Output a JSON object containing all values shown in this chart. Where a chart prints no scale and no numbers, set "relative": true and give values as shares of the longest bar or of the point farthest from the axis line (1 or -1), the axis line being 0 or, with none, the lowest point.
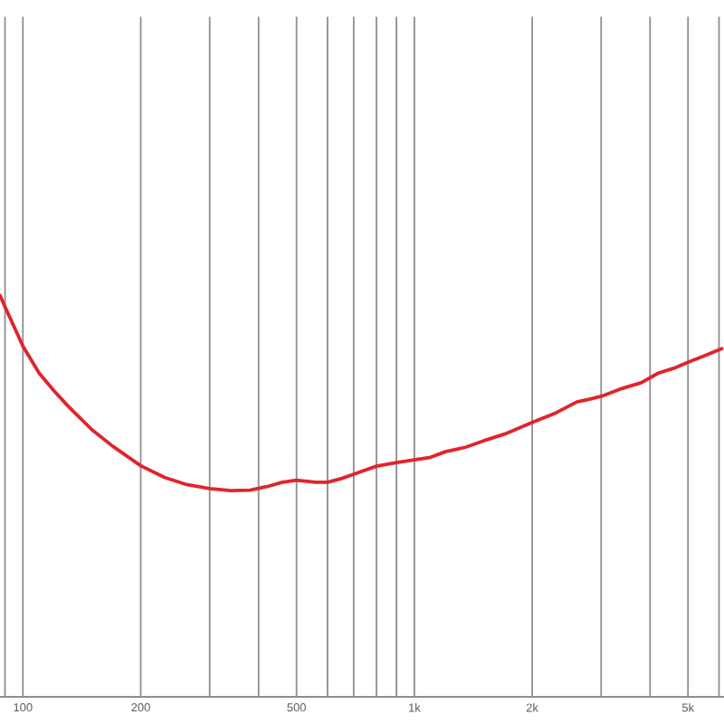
{
  "chart_data": {
    "type": "line",
    "relative": true,
    "log": "x",
    "grid": "x",
    "tick_labels": "x",
    "x": [
      87.5,
      90,
      95,
      100,
      110,
      120,
      130,
      150,
      170,
      200,
      230,
      260,
      300,
      340,
      380,
      420,
      460,
      500,
      560,
      600,
      650,
      700,
      800,
      900,
      1000,
      1100,
      1200,
      1350,
      1500,
      1700,
      2000,
      2300,
      2600,
      2800,
      3000,
      3400,
      3800,
      4200,
      4600,
      5000,
      5500,
      6100
    ],
    "series": [
      {
        "color": "#e0242c",
        "values": [
          1.0,
          0.972,
          0.922,
          0.874,
          0.807,
          0.763,
          0.726,
          0.666,
          0.624,
          0.576,
          0.547,
          0.53,
          0.519,
          0.514,
          0.515,
          0.524,
          0.535,
          0.54,
          0.535,
          0.535,
          0.544,
          0.555,
          0.575,
          0.584,
          0.591,
          0.597,
          0.611,
          0.622,
          0.638,
          0.655,
          0.684,
          0.708,
          0.735,
          0.742,
          0.749,
          0.769,
          0.783,
          0.807,
          0.819,
          0.834,
          0.85,
          0.868
        ]
      }
    ],
    "xlim": [
      87.4,
      6180
    ],
    "xticks": [
      {
        "value": 90,
        "label": null
      },
      100,
      200,
      {
        "value": 300,
        "label": null
      },
      {
        "value": 400,
        "label": null
      },
      500,
      {
        "value": 600,
        "label": null
      },
      {
        "value": 700,
        "label": null
      },
      {
        "value": 800,
        "label": null
      },
      {
        "value": 900,
        "label": null
      },
      {
        "value": 1000,
        "label": "1k"
      },
      {
        "value": 2000,
        "label": "2k"
      },
      {
        "value": 3000,
        "label": null
      },
      {
        "value": 4000,
        "label": null
      },
      {
        "value": 5000,
        "label": "5k"
      },
      {
        "value": 6000,
        "label": null
      }
    ]
  }
}
